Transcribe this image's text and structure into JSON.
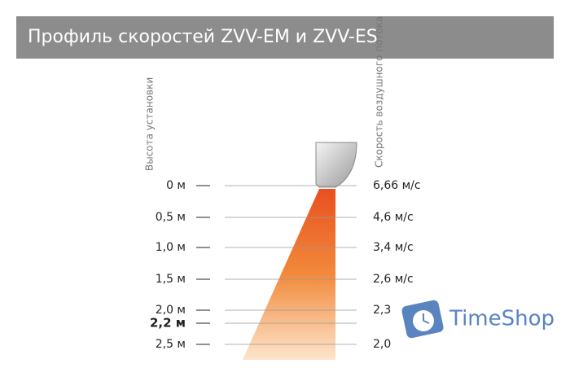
{
  "header": {
    "title": "Профиль скоростей ZVV-EM и ZVV-ES"
  },
  "left_label": "Высота установки",
  "right_label": "Скорость воздушного потока",
  "rows": [
    {
      "height": "0 м",
      "speed": "6,66 м/с"
    },
    {
      "height": "0,5 м",
      "speed": "4,6 м/с"
    },
    {
      "height": "1,0 м",
      "speed": "3,4 м/с"
    },
    {
      "height": "1,5 м",
      "speed": "2,6 м/с"
    },
    {
      "height": "2,0 м",
      "speed": "2,3"
    },
    {
      "height": "2,2 м",
      "bold": true
    },
    {
      "height": "2,5 м",
      "speed": "2,0"
    }
  ],
  "watermark": "TimeShop"
}
